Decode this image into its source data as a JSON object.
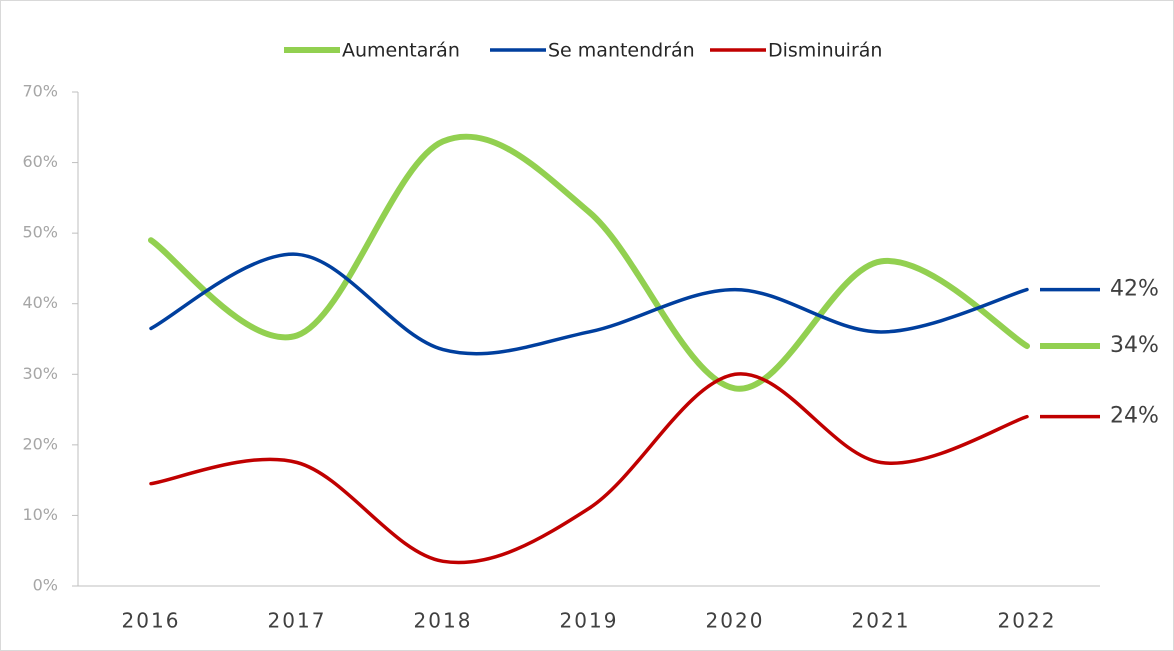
{
  "chart_data": {
    "type": "line",
    "categories": [
      "2016",
      "2017",
      "2018",
      "2019",
      "2020",
      "2021",
      "2022"
    ],
    "series": [
      {
        "name": "Aumentarán",
        "color": "#92d050",
        "values": [
          49,
          35.5,
          63,
          53,
          28,
          46,
          34
        ],
        "value_labels": [
          null,
          null,
          null,
          null,
          null,
          null,
          "34%"
        ]
      },
      {
        "name": "Se mantendrán",
        "color": "#003f9e",
        "values": [
          36.5,
          47,
          33.5,
          36,
          42,
          36,
          42
        ],
        "value_labels": [
          null,
          null,
          null,
          null,
          null,
          null,
          "42%"
        ]
      },
      {
        "name": "Disminuirán",
        "color": "#c00000",
        "values": [
          14.5,
          17.5,
          3.5,
          11,
          30,
          17.5,
          24
        ],
        "value_labels": [
          null,
          null,
          null,
          null,
          null,
          null,
          "24%"
        ]
      }
    ],
    "ylim": [
      0,
      70
    ],
    "yticks": [
      {
        "value": 0,
        "label": "0%"
      },
      {
        "value": 10,
        "label": "10%"
      },
      {
        "value": 20,
        "label": "20%"
      },
      {
        "value": 30,
        "label": "30%"
      },
      {
        "value": 40,
        "label": "40%"
      },
      {
        "value": 50,
        "label": "50%"
      },
      {
        "value": 60,
        "label": "60%"
      },
      {
        "value": 70,
        "label": "70%"
      }
    ],
    "legend": "top"
  }
}
